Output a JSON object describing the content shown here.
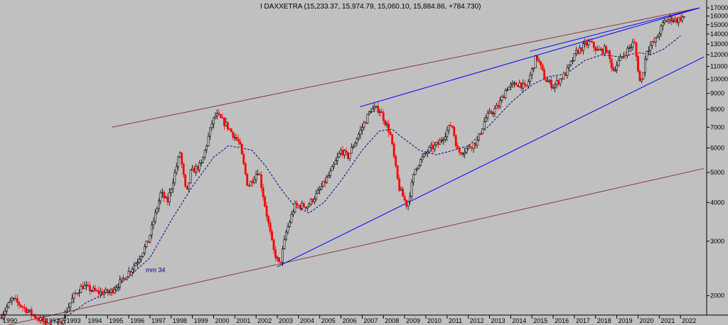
{
  "chart_data": {
    "type": "candlestick",
    "title": "I DAXXETRA (15,233.37, 15,974.79, 15,060.10, 15,884.86, +784.730)",
    "y_scale": "log",
    "ylim": [
      1750,
      17100
    ],
    "xlim": [
      1990.0,
      2023.1
    ],
    "y_ticks": [
      2000,
      3000,
      4000,
      5000,
      6000,
      7000,
      8000,
      9000,
      10000,
      11000,
      12000,
      13000,
      14000,
      15000,
      16000,
      17000
    ],
    "x_ticks": [
      1990,
      1992,
      1993,
      1994,
      1995,
      1996,
      1997,
      1998,
      1999,
      2000,
      2001,
      2002,
      2003,
      2004,
      2005,
      2006,
      2007,
      2008,
      2009,
      2010,
      2011,
      2012,
      2013,
      2014,
      2015,
      2016,
      2017,
      2018,
      2019,
      2020,
      2021,
      2022
    ],
    "colors": {
      "background": "#c0c0c0",
      "up_candle": "#000000",
      "down_candle": "#ff0000",
      "moving_average": "#00008b",
      "blue_channel": "#0000ff",
      "long_channel": "#8b3a3a",
      "axis": "#000000"
    },
    "annotations": [
      {
        "text": "mm 34",
        "x": 1996.8,
        "y": 2380
      }
    ],
    "price_anchors": [
      [
        1990.0,
        1700
      ],
      [
        1990.6,
        1950
      ],
      [
        1991.5,
        1750
      ],
      [
        1992.3,
        1600
      ],
      [
        1992.7,
        1550
      ],
      [
        1993.5,
        2000
      ],
      [
        1993.9,
        2150
      ],
      [
        1994.6,
        2050
      ],
      [
        1995.2,
        2050
      ],
      [
        1995.8,
        2250
      ],
      [
        1996.5,
        2600
      ],
      [
        1997.0,
        3000
      ],
      [
        1997.6,
        4300
      ],
      [
        1997.9,
        4000
      ],
      [
        1998.5,
        5800
      ],
      [
        1998.8,
        4200
      ],
      [
        1999.0,
        5000
      ],
      [
        1999.5,
        5300
      ],
      [
        2000.0,
        7200
      ],
      [
        2000.2,
        7700
      ],
      [
        2000.7,
        7100
      ],
      [
        2001.3,
        6200
      ],
      [
        2001.7,
        4500
      ],
      [
        2002.2,
        5100
      ],
      [
        2002.6,
        3600
      ],
      [
        2002.9,
        2800
      ],
      [
        2003.2,
        2500
      ],
      [
        2003.5,
        3200
      ],
      [
        2003.9,
        3900
      ],
      [
        2004.5,
        3900
      ],
      [
        2005.0,
        4300
      ],
      [
        2005.6,
        5000
      ],
      [
        2006.1,
        5900
      ],
      [
        2006.4,
        5600
      ],
      [
        2006.9,
        6600
      ],
      [
        2007.5,
        8000
      ],
      [
        2007.9,
        8000
      ],
      [
        2008.4,
        6700
      ],
      [
        2008.8,
        4500
      ],
      [
        2009.2,
        3900
      ],
      [
        2009.6,
        5200
      ],
      [
        2010.2,
        5900
      ],
      [
        2010.7,
        6200
      ],
      [
        2011.3,
        7200
      ],
      [
        2011.6,
        5800
      ],
      [
        2011.9,
        5900
      ],
      [
        2012.5,
        6300
      ],
      [
        2012.9,
        7500
      ],
      [
        2013.5,
        8200
      ],
      [
        2013.9,
        9400
      ],
      [
        2014.5,
        9700
      ],
      [
        2014.8,
        9300
      ],
      [
        2015.3,
        11900
      ],
      [
        2015.7,
        10000
      ],
      [
        2016.1,
        9500
      ],
      [
        2016.7,
        10500
      ],
      [
        2017.2,
        12300
      ],
      [
        2017.8,
        13200
      ],
      [
        2018.2,
        12300
      ],
      [
        2018.6,
        12500
      ],
      [
        2018.9,
        10700
      ],
      [
        2019.4,
        12000
      ],
      [
        2019.9,
        13200
      ],
      [
        2020.2,
        9500
      ],
      [
        2020.5,
        12500
      ],
      [
        2020.9,
        13300
      ],
      [
        2021.3,
        15300
      ],
      [
        2021.6,
        15700
      ],
      [
        2021.9,
        15500
      ],
      [
        2022.2,
        15900
      ]
    ],
    "moving_average_mm34": [
      [
        1992.3,
        1650
      ],
      [
        1993.0,
        1700
      ],
      [
        1994.0,
        1900
      ],
      [
        1995.0,
        2050
      ],
      [
        1996.0,
        2300
      ],
      [
        1997.0,
        2650
      ],
      [
        1998.0,
        3500
      ],
      [
        1999.0,
        4500
      ],
      [
        2000.0,
        5600
      ],
      [
        2000.7,
        6100
      ],
      [
        2001.3,
        6000
      ],
      [
        2001.8,
        5900
      ],
      [
        2002.4,
        5300
      ],
      [
        2003.2,
        4400
      ],
      [
        2003.8,
        3900
      ],
      [
        2004.5,
        3700
      ],
      [
        2005.2,
        4000
      ],
      [
        2006.0,
        4700
      ],
      [
        2007.0,
        5900
      ],
      [
        2007.8,
        6800
      ],
      [
        2008.4,
        6900
      ],
      [
        2009.0,
        6400
      ],
      [
        2009.7,
        5900
      ],
      [
        2010.5,
        5700
      ],
      [
        2011.3,
        5900
      ],
      [
        2012.0,
        6100
      ],
      [
        2013.0,
        7100
      ],
      [
        2014.0,
        8400
      ],
      [
        2015.0,
        9600
      ],
      [
        2015.8,
        10200
      ],
      [
        2016.6,
        10400
      ],
      [
        2017.5,
        11500
      ],
      [
        2018.3,
        12000
      ],
      [
        2019.2,
        11800
      ],
      [
        2020.0,
        12200
      ],
      [
        2020.6,
        12000
      ],
      [
        2021.2,
        12500
      ],
      [
        2022.0,
        13800
      ]
    ],
    "trendlines": [
      {
        "name": "long-channel-upper",
        "color": "#8b3a3a",
        "from": [
          1995.2,
          7000
        ],
        "to": [
          2022.9,
          17000
        ]
      },
      {
        "name": "long-channel-lower",
        "color": "#8b3a3a",
        "from": [
          1990.0,
          1590
        ],
        "to": [
          2023.1,
          5150
        ]
      },
      {
        "name": "blue-channel-upper",
        "color": "#0000ff",
        "from": [
          2006.9,
          8150
        ],
        "to": [
          2022.9,
          17000
        ]
      },
      {
        "name": "blue-channel-lower",
        "color": "#0000ff",
        "from": [
          2003.0,
          2480
        ],
        "to": [
          2023.1,
          11800
        ]
      },
      {
        "name": "blue-channel-top",
        "color": "#0000ff",
        "from": [
          2014.9,
          12300
        ],
        "to": [
          2022.9,
          17000
        ]
      }
    ]
  }
}
